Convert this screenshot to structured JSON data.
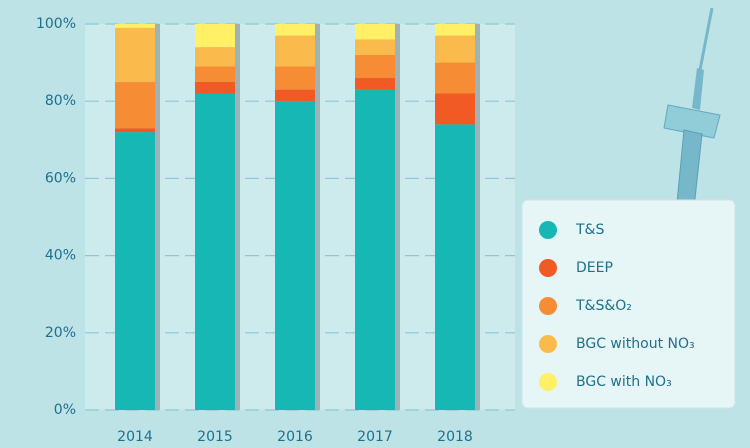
{
  "chart_data": {
    "type": "stacked_bar",
    "categories": [
      "2014",
      "2015",
      "2016",
      "2017",
      "2018"
    ],
    "series": [
      {
        "name": "T&S",
        "color": "#17b8b4",
        "values": [
          72,
          82,
          80,
          83,
          74
        ]
      },
      {
        "name": "DEEP",
        "color": "#f15a24",
        "values": [
          1,
          3,
          3,
          3,
          8
        ]
      },
      {
        "name": "T&S&O₂",
        "color": "#f68d35",
        "values": [
          12,
          4,
          6,
          6,
          8
        ]
      },
      {
        "name": "BGC without NO₃",
        "color": "#fbbb4c",
        "values": [
          14,
          5,
          8,
          4,
          7
        ]
      },
      {
        "name": "BGC with NO₃",
        "color": "#fff066",
        "values": [
          1,
          6,
          3,
          4,
          3
        ]
      }
    ],
    "ylim": [
      0,
      100
    ],
    "yticks": [
      {
        "value": 0,
        "label": "0%"
      },
      {
        "value": 20,
        "label": "20%"
      },
      {
        "value": 40,
        "label": "40%"
      },
      {
        "value": 60,
        "label": "60%"
      },
      {
        "value": 80,
        "label": "80%"
      },
      {
        "value": 100,
        "label": "100%"
      }
    ],
    "grid": true,
    "legend": "right"
  }
}
